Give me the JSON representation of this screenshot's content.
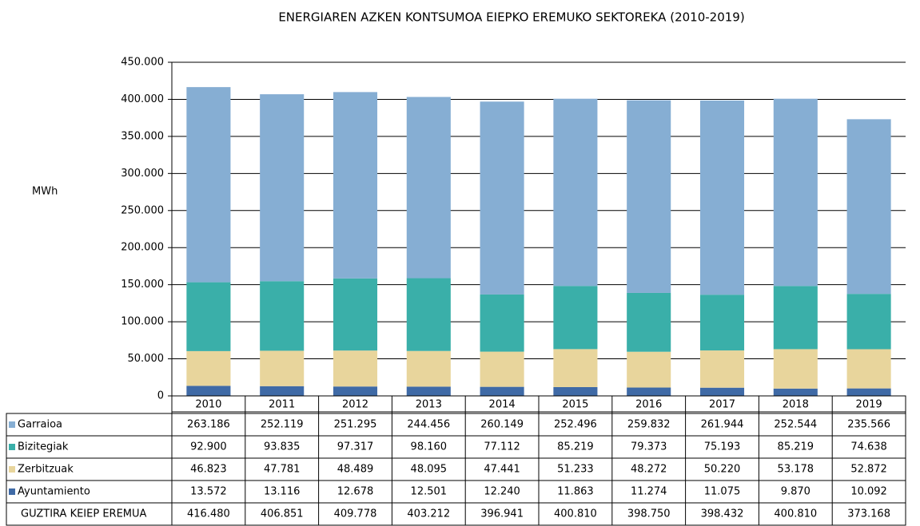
{
  "chart_data": {
    "type": "stacked_bar",
    "title": "ENERGIAREN AZKEN KONTSUMOA EIEPKO EREMUKO SEKTOREKA (2010-2019)",
    "y_label": "MWh",
    "categories": [
      "2010",
      "2011",
      "2012",
      "2013",
      "2014",
      "2015",
      "2016",
      "2017",
      "2018",
      "2019"
    ],
    "series": [
      {
        "name": "Garraioa",
        "color": "#86aed3",
        "values": [
          263186,
          252119,
          251295,
          244456,
          260149,
          252496,
          259832,
          261944,
          252544,
          235566
        ],
        "value_labels": [
          "263.186",
          "252.119",
          "251.295",
          "244.456",
          "260.149",
          "252.496",
          "259.832",
          "261.944",
          "252.544",
          "235.566"
        ]
      },
      {
        "name": "Bizitegiak",
        "color": "#3aafa9",
        "values": [
          92900,
          93835,
          97317,
          98160,
          77112,
          85219,
          79373,
          75193,
          85219,
          74638
        ],
        "value_labels": [
          "92.900",
          "93.835",
          "97.317",
          "98.160",
          "77.112",
          "85.219",
          "79.373",
          "75.193",
          "85.219",
          "74.638"
        ]
      },
      {
        "name": "Zerbitzuak",
        "color": "#e8d59c",
        "values": [
          46823,
          47781,
          48489,
          48095,
          47441,
          51233,
          48272,
          50220,
          53178,
          52872
        ],
        "value_labels": [
          "46.823",
          "47.781",
          "48.489",
          "48.095",
          "47.441",
          "51.233",
          "48.272",
          "50.220",
          "53.178",
          "52.872"
        ]
      },
      {
        "name": "Ayuntamiento",
        "color": "#3f6aa6",
        "values": [
          13572,
          13116,
          12678,
          12501,
          12240,
          11863,
          11274,
          11075,
          9870,
          10092
        ],
        "value_labels": [
          "13.572",
          "13.116",
          "12.678",
          "12.501",
          "12.240",
          "11.863",
          "11.274",
          "11.075",
          "9.870",
          "10.092"
        ]
      }
    ],
    "totals": {
      "name": "GUZTIRA KEIEP EREMUA",
      "values": [
        416480,
        406851,
        409778,
        403212,
        396941,
        400810,
        398750,
        398432,
        400810,
        373168
      ],
      "value_labels": [
        "416.480",
        "406.851",
        "409.778",
        "403.212",
        "396.941",
        "400.810",
        "398.750",
        "398.432",
        "400.810",
        "373.168"
      ]
    },
    "ylim": [
      0,
      450000
    ],
    "yticks": [
      0,
      {
        "value": 50000,
        "label": "50.000"
      },
      {
        "value": 100000,
        "label": "100.000"
      },
      {
        "value": 150000,
        "label": "150.000"
      },
      {
        "value": 200000,
        "label": "200.000"
      },
      {
        "value": 250000,
        "label": "250.000"
      },
      {
        "value": 300000,
        "label": "300.000"
      },
      {
        "value": 350000,
        "label": "350.000"
      },
      {
        "value": 400000,
        "label": "400.000"
      },
      {
        "value": 450000,
        "label": "450.000"
      }
    ],
    "grid": true
  }
}
